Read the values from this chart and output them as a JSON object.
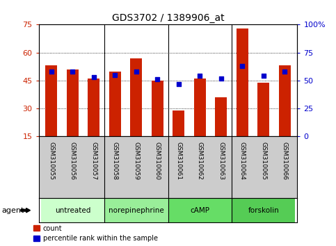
{
  "title": "GDS3702 / 1389906_at",
  "samples": [
    "GSM310055",
    "GSM310056",
    "GSM310057",
    "GSM310058",
    "GSM310059",
    "GSM310060",
    "GSM310061",
    "GSM310062",
    "GSM310063",
    "GSM310064",
    "GSM310065",
    "GSM310066"
  ],
  "count_values": [
    53,
    51,
    46,
    50,
    57,
    45,
    29,
    46,
    36,
    73,
    44,
    53
  ],
  "percentile_values": [
    58,
    58,
    53,
    55,
    58,
    51,
    47,
    54,
    52,
    63,
    54,
    58
  ],
  "bar_bottom": 15,
  "bar_color": "#cc2200",
  "dot_color": "#0000cc",
  "ylim_left": [
    15,
    75
  ],
  "ylim_right": [
    0,
    100
  ],
  "yticks_left": [
    15,
    30,
    45,
    60,
    75
  ],
  "yticks_right": [
    0,
    25,
    50,
    75,
    100
  ],
  "ytick_labels_right": [
    "0",
    "25",
    "50",
    "75",
    "100%"
  ],
  "groups": [
    {
      "label": "untreated",
      "start": 0,
      "end": 3,
      "color": "#ccffcc"
    },
    {
      "label": "norepinephrine",
      "start": 3,
      "end": 6,
      "color": "#99ee99"
    },
    {
      "label": "cAMP",
      "start": 6,
      "end": 9,
      "color": "#66dd66"
    },
    {
      "label": "forskolin",
      "start": 9,
      "end": 12,
      "color": "#55cc55"
    }
  ],
  "group_boundaries": [
    3,
    6,
    9
  ],
  "agent_label": "agent",
  "legend_count": "count",
  "legend_pct": "percentile rank within the sample",
  "tick_label_area_color": "#cccccc",
  "title_fontsize": 10,
  "bar_width": 0.55,
  "xlim": [
    -0.6,
    11.6
  ]
}
